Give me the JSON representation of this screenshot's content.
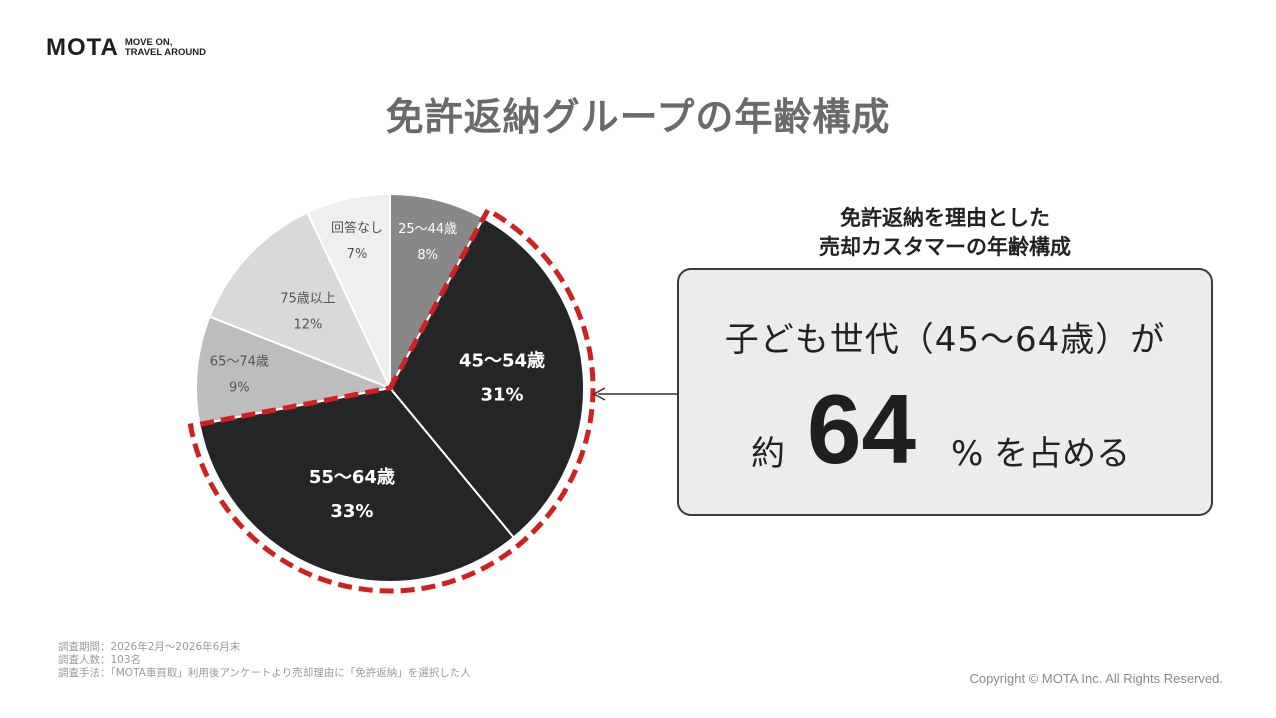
{
  "logo": {
    "mark": "MOTA",
    "tagline": [
      "MOVE ON,",
      "TRAVEL AROUND"
    ]
  },
  "title": "免許返納グループの年齢構成",
  "callout": {
    "title_lines": [
      "免許返納を理由とした",
      "売却カスタマーの年齢構成"
    ],
    "line1": "子ども世代（45〜64歳）が",
    "prefix": "約",
    "number": "64",
    "suffix": "% を占める"
  },
  "chart_data": {
    "type": "pie",
    "title": "",
    "slices": [
      {
        "label": "25〜44歳",
        "value": 8,
        "value_label": "8%",
        "color": "#888888",
        "text_color": "#ffffff",
        "bold": false,
        "highlighted": false
      },
      {
        "label": "45〜54歳",
        "value": 31,
        "value_label": "31%",
        "color": "#232527",
        "text_color": "#ffffff",
        "bold": true,
        "highlighted": true
      },
      {
        "label": "55〜64歳",
        "value": 33,
        "value_label": "33%",
        "color": "#232527",
        "text_color": "#ffffff",
        "bold": true,
        "highlighted": true
      },
      {
        "label": "65〜74歳",
        "value": 9,
        "value_label": "9%",
        "color": "#bdbdbd",
        "text_color": "#555555",
        "bold": false,
        "highlighted": false
      },
      {
        "label": "75歳以上",
        "value": 12,
        "value_label": "12%",
        "color": "#d9d9d9",
        "text_color": "#555555",
        "bold": false,
        "highlighted": false
      },
      {
        "label": "回答なし",
        "value": 7,
        "value_label": "7%",
        "color": "#efefef",
        "text_color": "#555555",
        "bold": false,
        "highlighted": false
      }
    ],
    "highlight_color": "#d21f1f",
    "start_angle_deg": 0,
    "direction": "clockwise"
  },
  "footnotes": [
    "調査期間：2026年2月〜2026年6月末",
    "調査人数：103名",
    "調査手法：「MOTA車買取」利用後アンケートより売却理由に「免許返納」を選択した人"
  ],
  "copyright": "Copyright © MOTA Inc. All Rights Reserved."
}
